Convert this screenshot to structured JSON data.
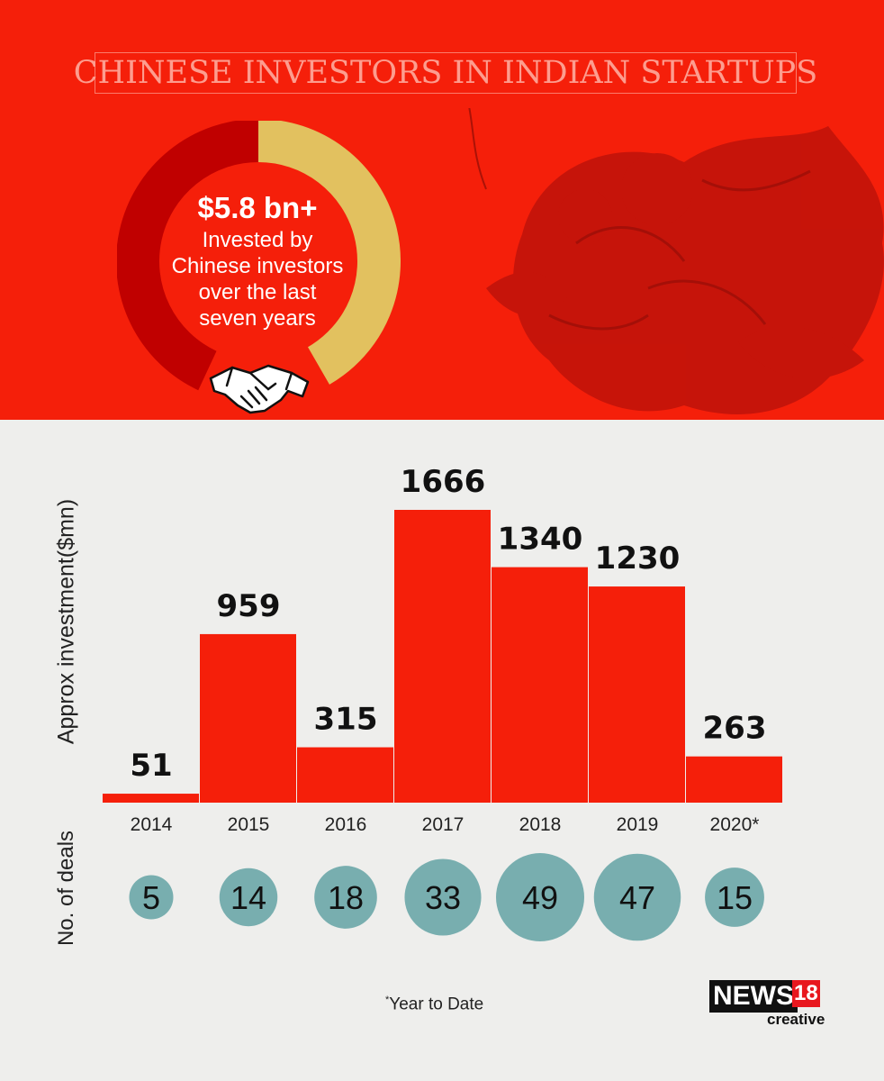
{
  "header": {
    "title": "CHINESE INVESTORS IN INDIAN STARTUPS",
    "headline": "$5.8 bn+",
    "caption_lines": [
      "Invested by",
      "Chinese investors",
      "over the last",
      "seven years"
    ]
  },
  "colors": {
    "background_top": "#f51f0a",
    "bar": "#f51f0a",
    "donut_dark": "#c00000",
    "donut_gold": "#e2c15f",
    "bubble": "#78aeaf"
  },
  "chart_data": {
    "type": "bar",
    "ylabel": "Approx investment($mn)",
    "categories": [
      "2014",
      "2015",
      "2016",
      "2017",
      "2018",
      "2019",
      "2020*"
    ],
    "values": [
      51,
      959,
      315,
      1666,
      1340,
      1230,
      263
    ],
    "ylim": [
      0,
      1666
    ],
    "grid": false,
    "data_labels": true,
    "deals": {
      "label": "No. of deals",
      "values": [
        5,
        14,
        18,
        33,
        49,
        47,
        15
      ]
    }
  },
  "footnote": {
    "marker": "*",
    "text": "Year to Date"
  },
  "logo": {
    "main": "NEWS",
    "number": "18",
    "sub": "creative"
  }
}
